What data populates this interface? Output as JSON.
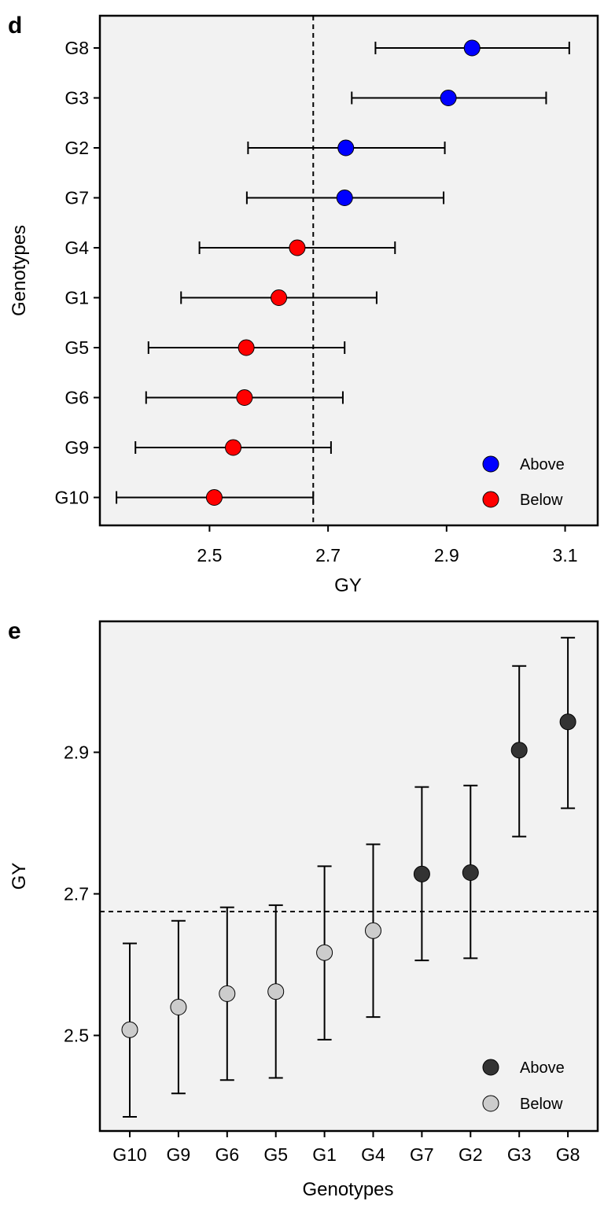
{
  "chart_data": [
    {
      "panel_letter": "d",
      "type": "scatter",
      "orientation": "horizontal",
      "xlabel": "GY",
      "ylabel": "Genotypes",
      "x_ticks": [
        2.5,
        2.7,
        2.9,
        3.1
      ],
      "x_tick_labels": [
        "2.5",
        "2.7",
        "2.9",
        "3.1"
      ],
      "xlim": [
        2.315,
        3.155
      ],
      "reference_line": 2.675,
      "grid": false,
      "background": "#f2f2f2",
      "legend_position": "bottom-right",
      "colors": {
        "Above": "#0000ff",
        "Below": "#ff0000"
      },
      "legend": [
        {
          "label": "Above",
          "group": "Above"
        },
        {
          "label": "Below",
          "group": "Below"
        }
      ],
      "points": [
        {
          "genotype": "G8",
          "value": 2.943,
          "lower": 2.78,
          "upper": 3.107,
          "group": "Above"
        },
        {
          "genotype": "G3",
          "value": 2.903,
          "lower": 2.74,
          "upper": 3.068,
          "group": "Above"
        },
        {
          "genotype": "G2",
          "value": 2.73,
          "lower": 2.565,
          "upper": 2.897,
          "group": "Above"
        },
        {
          "genotype": "G7",
          "value": 2.728,
          "lower": 2.563,
          "upper": 2.895,
          "group": "Above"
        },
        {
          "genotype": "G4",
          "value": 2.648,
          "lower": 2.483,
          "upper": 2.813,
          "group": "Below"
        },
        {
          "genotype": "G1",
          "value": 2.617,
          "lower": 2.452,
          "upper": 2.782,
          "group": "Below"
        },
        {
          "genotype": "G5",
          "value": 2.562,
          "lower": 2.397,
          "upper": 2.728,
          "group": "Below"
        },
        {
          "genotype": "G6",
          "value": 2.559,
          "lower": 2.393,
          "upper": 2.725,
          "group": "Below"
        },
        {
          "genotype": "G9",
          "value": 2.54,
          "lower": 2.375,
          "upper": 2.705,
          "group": "Below"
        },
        {
          "genotype": "G10",
          "value": 2.508,
          "lower": 2.343,
          "upper": 2.675,
          "group": "Below"
        }
      ]
    },
    {
      "panel_letter": "e",
      "type": "scatter",
      "orientation": "vertical",
      "xlabel": "Genotypes",
      "ylabel": "GY",
      "y_ticks": [
        2.5,
        2.7,
        2.9
      ],
      "y_tick_labels": [
        "2.5",
        "2.7",
        "2.9"
      ],
      "ylim": [
        2.365,
        3.085
      ],
      "reference_line": 2.675,
      "grid": false,
      "background": "#f2f2f2",
      "legend_position": "bottom-right",
      "colors": {
        "Above": "#333333",
        "Below": "#cccccc"
      },
      "legend": [
        {
          "label": "Above",
          "group": "Above"
        },
        {
          "label": "Below",
          "group": "Below"
        }
      ],
      "points": [
        {
          "genotype": "G10",
          "value": 2.508,
          "lower": 2.385,
          "upper": 2.63,
          "group": "Below"
        },
        {
          "genotype": "G9",
          "value": 2.54,
          "lower": 2.418,
          "upper": 2.662,
          "group": "Below"
        },
        {
          "genotype": "G6",
          "value": 2.559,
          "lower": 2.437,
          "upper": 2.681,
          "group": "Below"
        },
        {
          "genotype": "G5",
          "value": 2.562,
          "lower": 2.44,
          "upper": 2.684,
          "group": "Below"
        },
        {
          "genotype": "G1",
          "value": 2.617,
          "lower": 2.494,
          "upper": 2.739,
          "group": "Below"
        },
        {
          "genotype": "G4",
          "value": 2.648,
          "lower": 2.526,
          "upper": 2.77,
          "group": "Below"
        },
        {
          "genotype": "G7",
          "value": 2.728,
          "lower": 2.606,
          "upper": 2.851,
          "group": "Above"
        },
        {
          "genotype": "G2",
          "value": 2.73,
          "lower": 2.609,
          "upper": 2.853,
          "group": "Above"
        },
        {
          "genotype": "G3",
          "value": 2.903,
          "lower": 2.781,
          "upper": 3.022,
          "group": "Above"
        },
        {
          "genotype": "G8",
          "value": 2.943,
          "lower": 2.821,
          "upper": 3.062,
          "group": "Above"
        }
      ]
    }
  ]
}
